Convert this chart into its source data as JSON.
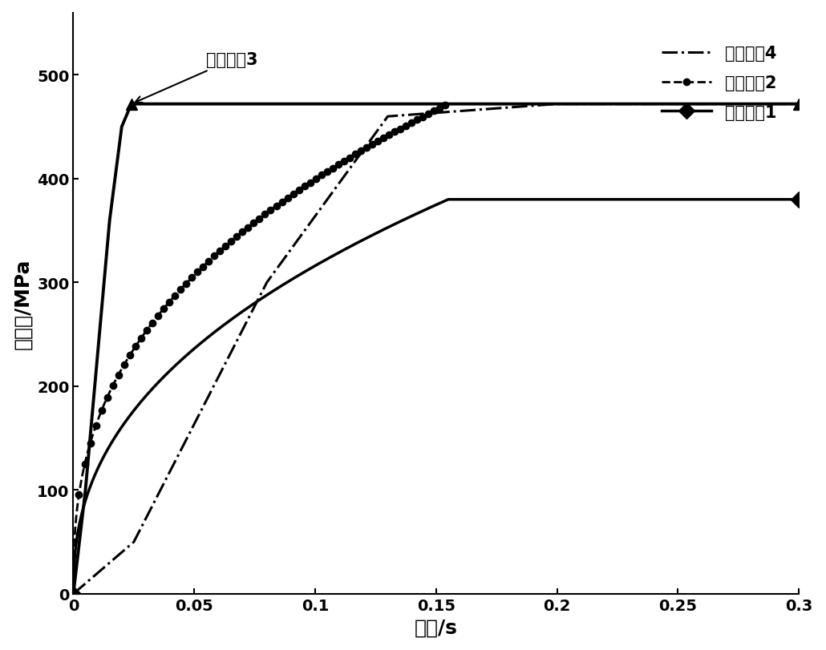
{
  "xlabel": "时间/s",
  "ylabel": "膨胀力/MPa",
  "xlim": [
    0,
    0.3
  ],
  "ylim": [
    0,
    560
  ],
  "xticks": [
    0,
    0.05,
    0.1,
    0.15,
    0.2,
    0.25,
    0.3
  ],
  "xtick_labels": [
    "0",
    "0.05",
    "0.1",
    "0.15",
    "0.2",
    "0.25",
    "0.3"
  ],
  "yticks": [
    0,
    100,
    200,
    300,
    400,
    500
  ],
  "ytick_labels": [
    "0",
    "100",
    "200",
    "300",
    "400",
    "500"
  ],
  "curve3_label": "加载曲线3",
  "curve4_label": "加载曲线4",
  "curve2_label": "加载曲线2",
  "curve1_label": "加载曲线1",
  "background_color": "#ffffff",
  "curve3_peak": 472,
  "curve3_rise_end": 0.024,
  "curve1_peak": 380,
  "curve1_plateau_start": 0.155,
  "curve2_peak": 472,
  "curve2_plateau_start": 0.155,
  "curve4_final": 472,
  "curve4_end": 0.3,
  "linewidth": 2.5,
  "markersize_large": 10,
  "markersize_small": 6,
  "fontsize_label": 18,
  "fontsize_tick": 14,
  "fontsize_legend": 15
}
